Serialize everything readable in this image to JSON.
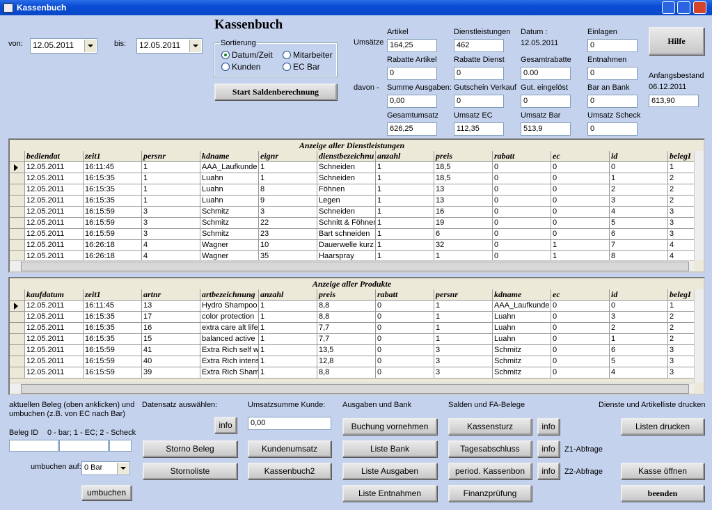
{
  "window": {
    "title": "Kassenbuch"
  },
  "header": {
    "title": "Kassenbuch",
    "von_label": "von:",
    "von_value": "12.05.2011",
    "bis_label": "bis:",
    "bis_value": "12.05.2011"
  },
  "sort": {
    "label": "Sortierung",
    "options": [
      "Datum/Zeit",
      "Mitarbeiter",
      "Kunden",
      "EC Bar"
    ]
  },
  "start_button": "Start Saldenberechnung",
  "help_button": "Hilfe",
  "summary": {
    "row_labels": [
      "Umsätze",
      "davon -"
    ],
    "fields": [
      {
        "label": "Artikel",
        "value": "164,25"
      },
      {
        "label": "Dienstleistungen",
        "value": "462"
      },
      {
        "label": "Datum :",
        "value": "12.05.2011"
      },
      {
        "label": "Einlagen",
        "value": "0"
      },
      {
        "label": "Rabatte Artikel",
        "value": "0"
      },
      {
        "label": "Rabatte Dienst",
        "value": "0"
      },
      {
        "label": "Gesamtrabatte",
        "value": "0.00"
      },
      {
        "label": "Entnahmen",
        "value": "0"
      },
      {
        "label": "Summe Ausgaben:",
        "value": "0,00"
      },
      {
        "label": "Gutschein Verkauf",
        "value": "0"
      },
      {
        "label": "Gut. eingelöst",
        "value": "0"
      },
      {
        "label": "Bar an Bank",
        "value": "0"
      },
      {
        "label": "Gesamtumsatz",
        "value": "626,25"
      },
      {
        "label": "Umsatz EC",
        "value": "112,35"
      },
      {
        "label": "Umsatz Bar",
        "value": "513,9"
      },
      {
        "label": "Umsatz Scheck",
        "value": "0"
      }
    ],
    "anfangsbestand": {
      "label": "Anfangsbestand",
      "date": "06.12.2011",
      "value": "613,90"
    }
  },
  "services": {
    "title": "Anzeige aller Dienstleistungen",
    "columns": [
      "bediendat",
      "zeit1",
      "persnr",
      "kdname",
      "eignr",
      "dienstbezeichnu",
      "anzahl",
      "preis",
      "rabatt",
      "ec",
      "id",
      "belegI"
    ],
    "rows": [
      [
        "12.05.2011",
        "16:11:45",
        "1",
        "AAA_Laufkunde",
        "1",
        "Schneiden",
        "1",
        "18,5",
        "0",
        "0",
        "0",
        "1"
      ],
      [
        "12.05.2011",
        "16:15:35",
        "1",
        "Luahn",
        "1",
        "Schneiden",
        "1",
        "18,5",
        "0",
        "0",
        "1",
        "2"
      ],
      [
        "12.05.2011",
        "16:15:35",
        "1",
        "Luahn",
        "8",
        "Föhnen",
        "1",
        "13",
        "0",
        "0",
        "2",
        "2"
      ],
      [
        "12.05.2011",
        "16:15:35",
        "1",
        "Luahn",
        "9",
        "Legen",
        "1",
        "13",
        "0",
        "0",
        "3",
        "2"
      ],
      [
        "12.05.2011",
        "16:15:59",
        "3",
        "Schmitz",
        "3",
        "Schneiden",
        "1",
        "16",
        "0",
        "0",
        "4",
        "3"
      ],
      [
        "12.05.2011",
        "16:15:59",
        "3",
        "Schmitz",
        "22",
        "Schnitt & Föhnen",
        "1",
        "19",
        "0",
        "0",
        "5",
        "3"
      ],
      [
        "12.05.2011",
        "16:15:59",
        "3",
        "Schmitz",
        "23",
        "Bart schneiden",
        "1",
        "6",
        "0",
        "0",
        "6",
        "3"
      ],
      [
        "12.05.2011",
        "16:26:18",
        "4",
        "Wagner",
        "10",
        "Dauerwelle kurz",
        "1",
        "32",
        "0",
        "1",
        "7",
        "4"
      ],
      [
        "12.05.2011",
        "16:26:18",
        "4",
        "Wagner",
        "35",
        "Haarspray",
        "1",
        "1",
        "0",
        "1",
        "8",
        "4"
      ]
    ]
  },
  "products": {
    "title": "Anzeige aller Produkte",
    "columns": [
      "kaufdatum",
      "zeit1",
      "artnr",
      "artbezeichnung",
      "anzahl",
      "preis",
      "rabatt",
      "persnr",
      "kdname",
      "ec",
      "id",
      "belegI"
    ],
    "rows": [
      [
        "12.05.2011",
        "16:11:45",
        "13",
        "Hydro Shampoo",
        "1",
        "8,8",
        "0",
        "1",
        "AAA_Laufkunde",
        "0",
        "0",
        "1"
      ],
      [
        "12.05.2011",
        "16:15:35",
        "17",
        "color protection",
        "1",
        "8,8",
        "0",
        "1",
        "Luahn",
        "0",
        "3",
        "2"
      ],
      [
        "12.05.2011",
        "16:15:35",
        "16",
        "extra care alt lifet",
        "1",
        "7,7",
        "0",
        "1",
        "Luahn",
        "0",
        "2",
        "2"
      ],
      [
        "12.05.2011",
        "16:15:35",
        "15",
        "balanced active",
        "1",
        "7,7",
        "0",
        "1",
        "Luahn",
        "0",
        "1",
        "2"
      ],
      [
        "12.05.2011",
        "16:15:59",
        "41",
        "Extra Rich self w",
        "1",
        "13,5",
        "0",
        "3",
        "Schmitz",
        "0",
        "6",
        "3"
      ],
      [
        "12.05.2011",
        "16:15:59",
        "40",
        "Extra Rich intens",
        "1",
        "12,8",
        "0",
        "3",
        "Schmitz",
        "0",
        "5",
        "3"
      ],
      [
        "12.05.2011",
        "16:15:59",
        "39",
        "Extra Rich Shamp",
        "1",
        "8,8",
        "0",
        "3",
        "Schmitz",
        "0",
        "4",
        "3"
      ]
    ]
  },
  "bottom": {
    "beleg": {
      "hint": "aktuellen Beleg (oben anklicken)  und umbuchen (z.B. von EC nach Bar)",
      "id_label": "Beleg ID",
      "codes": "0 - bar; 1 - EC; 2 - Scheck",
      "umbuchen_label": "umbuchen auf:",
      "umbuchen_value": "0  Bar",
      "button": "umbuchen"
    },
    "datensatz": {
      "label": "Datensatz auswählen:",
      "info": "info",
      "storno": "Storno Beleg",
      "stornoliste": "Stornoliste"
    },
    "kunde": {
      "label": "Umsatzsumme Kunde:",
      "value": "0,00",
      "kundenumsatz": "Kundenumsatz",
      "kassenbuch2": "Kassenbuch2"
    },
    "ausgaben": {
      "label": "Ausgaben und Bank",
      "buttons": [
        "Buchung vornehmen",
        "Liste Bank",
        "Liste Ausgaben",
        "Liste Entnahmen"
      ]
    },
    "salden": {
      "label": "Salden und FA-Belege",
      "buttons": [
        "Kassensturz",
        "Tagesabschluss",
        "period. Kassenbon",
        "Finanzprüfung"
      ],
      "info": [
        "info",
        "info",
        "info"
      ],
      "z1": "Z1-Abfrage",
      "z2": "Z2-Abfrage"
    },
    "drucken": {
      "label": "Dienste und Artikelliste drucken",
      "buttons": [
        "Listen drucken",
        "Kasse öffnen",
        "beenden"
      ]
    }
  }
}
